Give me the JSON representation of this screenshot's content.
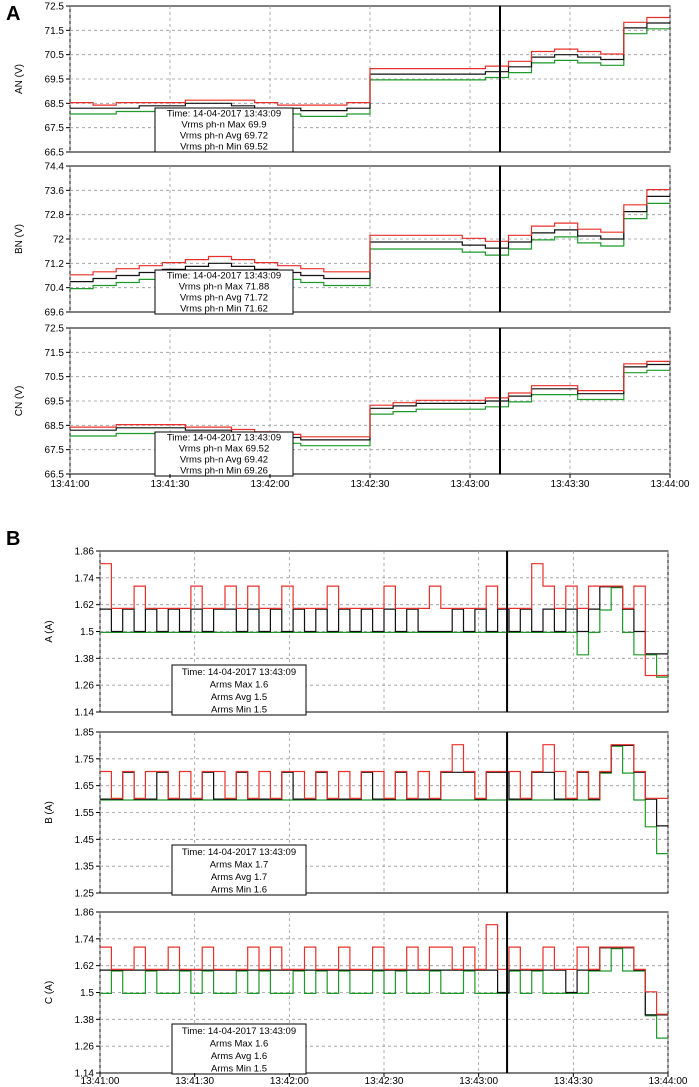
{
  "figure": {
    "panel_labels": [
      "A",
      "B"
    ]
  },
  "colors": {
    "max": "#e8302a",
    "avg": "#111111",
    "min": "#1f9a2a",
    "grid": "#9a9a9a",
    "cursor": "#000000"
  },
  "chart_data": [
    {
      "type": "line",
      "panel": "A",
      "ylabel": "AN (V)",
      "ylim": [
        66.5,
        72.5
      ],
      "yticks": [
        66.5,
        67.5,
        68.5,
        69.5,
        70.5,
        71.5,
        72.5
      ],
      "xlim": [
        "13:41:00",
        "13:44:00"
      ],
      "cursor_time": "13:43:09",
      "series": [
        {
          "name": "Max",
          "color_key": "max",
          "values": [
            68.5,
            68.4,
            68.5,
            68.5,
            68.5,
            68.6,
            68.6,
            68.6,
            68.5,
            68.4,
            68.4,
            68.4,
            68.5,
            69.9,
            69.9,
            69.9,
            69.9,
            69.9,
            70.0,
            70.2,
            70.6,
            70.7,
            70.6,
            70.5,
            71.8,
            72.0
          ]
        },
        {
          "name": "Avg",
          "color_key": "avg",
          "values": [
            68.3,
            68.3,
            68.3,
            68.4,
            68.4,
            68.5,
            68.5,
            68.4,
            68.3,
            68.3,
            68.2,
            68.2,
            68.3,
            69.7,
            69.7,
            69.7,
            69.7,
            69.7,
            69.8,
            70.0,
            70.4,
            70.5,
            70.4,
            70.3,
            71.6,
            71.8
          ]
        },
        {
          "name": "Min",
          "color_key": "min",
          "values": [
            68.1,
            68.1,
            68.2,
            68.2,
            68.3,
            68.3,
            68.3,
            68.2,
            68.1,
            68.1,
            68.0,
            68.0,
            68.1,
            69.5,
            69.5,
            69.5,
            69.5,
            69.5,
            69.6,
            69.8,
            70.2,
            70.3,
            70.2,
            70.1,
            71.4,
            71.6
          ]
        }
      ],
      "tooltip": [
        "Time: 14-04-2017 13:43:09",
        "Vrms ph-n Max 69.9",
        "Vrms ph-n Avg 69.72",
        "Vrms ph-n Min 69.52"
      ]
    },
    {
      "type": "line",
      "panel": "A",
      "ylabel": "BN (V)",
      "ylim": [
        69.6,
        74.4
      ],
      "yticks": [
        69.6,
        70.4,
        71.2,
        72,
        72.8,
        73.6,
        74.4
      ],
      "xlim": [
        "13:41:00",
        "13:44:00"
      ],
      "cursor_time": "13:43:09",
      "series": [
        {
          "name": "Max",
          "color_key": "max",
          "values": [
            70.8,
            70.9,
            71.0,
            71.1,
            71.2,
            71.3,
            71.4,
            71.3,
            71.2,
            71.1,
            71.0,
            70.9,
            70.9,
            72.1,
            72.1,
            72.1,
            72.1,
            72.0,
            71.9,
            72.1,
            72.4,
            72.5,
            72.3,
            72.2,
            73.1,
            73.6
          ]
        },
        {
          "name": "Avg",
          "color_key": "avg",
          "values": [
            70.6,
            70.7,
            70.8,
            70.9,
            71.0,
            71.1,
            71.2,
            71.1,
            71.0,
            70.9,
            70.8,
            70.7,
            70.7,
            71.9,
            71.9,
            71.9,
            71.9,
            71.8,
            71.7,
            71.9,
            72.2,
            72.3,
            72.1,
            72.0,
            72.9,
            73.4
          ]
        },
        {
          "name": "Min",
          "color_key": "min",
          "values": [
            70.4,
            70.5,
            70.6,
            70.7,
            70.8,
            70.9,
            71.0,
            70.9,
            70.8,
            70.7,
            70.6,
            70.5,
            70.5,
            71.7,
            71.7,
            71.7,
            71.7,
            71.6,
            71.5,
            71.7,
            72.0,
            72.1,
            71.9,
            71.8,
            72.7,
            73.2
          ]
        }
      ],
      "tooltip": [
        "Time: 14-04-2017 13:43:09",
        "Vrms ph-n Max 71.88",
        "Vrms ph-n Avg 71.72",
        "Vrms ph-n Min 71.62"
      ]
    },
    {
      "type": "line",
      "panel": "A",
      "ylabel": "CN (V)",
      "ylim": [
        66.5,
        72.5
      ],
      "yticks": [
        66.5,
        67.5,
        68.5,
        69.5,
        70.5,
        71.5,
        72.5
      ],
      "xlim": [
        "13:41:00",
        "13:44:00"
      ],
      "cursor_time": "13:43:09",
      "series": [
        {
          "name": "Max",
          "color_key": "max",
          "values": [
            68.4,
            68.4,
            68.5,
            68.5,
            68.5,
            68.4,
            68.4,
            68.3,
            68.2,
            68.1,
            68.0,
            68.0,
            68.0,
            69.3,
            69.4,
            69.5,
            69.5,
            69.5,
            69.6,
            69.8,
            70.1,
            70.1,
            69.9,
            69.9,
            71.0,
            71.1
          ]
        },
        {
          "name": "Avg",
          "color_key": "avg",
          "values": [
            68.3,
            68.3,
            68.4,
            68.4,
            68.4,
            68.3,
            68.3,
            68.2,
            68.1,
            68.0,
            67.9,
            67.9,
            67.9,
            69.2,
            69.3,
            69.4,
            69.4,
            69.4,
            69.5,
            69.7,
            70.0,
            70.0,
            69.8,
            69.8,
            70.9,
            71.0
          ]
        },
        {
          "name": "Min",
          "color_key": "min",
          "values": [
            68.1,
            68.1,
            68.2,
            68.2,
            68.2,
            68.1,
            68.1,
            68.0,
            67.9,
            67.8,
            67.7,
            67.7,
            67.7,
            69.0,
            69.1,
            69.2,
            69.2,
            69.2,
            69.3,
            69.5,
            69.8,
            69.8,
            69.6,
            69.6,
            70.7,
            70.8
          ]
        }
      ],
      "tooltip": [
        "Time: 14-04-2017 13:43:09",
        "Vrms ph-n Max 69.52",
        "Vrms ph-n Avg 69.42",
        "Vrms ph-n Min 69.26"
      ]
    },
    {
      "type": "line",
      "panel": "B",
      "ylabel": "A (A)",
      "ylim": [
        1.14,
        1.86
      ],
      "yticks": [
        1.14,
        1.26,
        1.38,
        1.5,
        1.62,
        1.74,
        1.86
      ],
      "xlim": [
        "13:41:00",
        "13:44:00"
      ],
      "cursor_time": "13:43:09",
      "series": [
        {
          "name": "Max",
          "color_key": "max",
          "values": [
            1.8,
            1.6,
            1.6,
            1.7,
            1.6,
            1.6,
            1.6,
            1.6,
            1.7,
            1.6,
            1.6,
            1.7,
            1.6,
            1.7,
            1.6,
            1.6,
            1.7,
            1.6,
            1.6,
            1.6,
            1.7,
            1.6,
            1.6,
            1.6,
            1.6,
            1.7,
            1.6,
            1.6,
            1.6,
            1.7,
            1.6,
            1.6,
            1.6,
            1.6,
            1.7,
            1.6,
            1.6,
            1.6,
            1.8,
            1.7,
            1.6,
            1.7,
            1.6,
            1.7,
            1.7,
            1.7,
            1.6,
            1.7,
            1.3,
            1.3
          ]
        },
        {
          "name": "Avg",
          "color_key": "avg",
          "values": [
            1.6,
            1.5,
            1.6,
            1.5,
            1.6,
            1.5,
            1.6,
            1.5,
            1.6,
            1.5,
            1.6,
            1.6,
            1.5,
            1.6,
            1.5,
            1.6,
            1.5,
            1.6,
            1.5,
            1.6,
            1.5,
            1.6,
            1.5,
            1.6,
            1.5,
            1.6,
            1.5,
            1.6,
            1.5,
            1.5,
            1.5,
            1.6,
            1.5,
            1.6,
            1.5,
            1.6,
            1.5,
            1.6,
            1.5,
            1.6,
            1.5,
            1.6,
            1.5,
            1.6,
            1.7,
            1.7,
            1.6,
            1.5,
            1.4,
            1.4
          ]
        },
        {
          "name": "Min",
          "color_key": "min",
          "values": [
            1.5,
            1.5,
            1.5,
            1.5,
            1.5,
            1.5,
            1.5,
            1.5,
            1.5,
            1.5,
            1.5,
            1.5,
            1.5,
            1.5,
            1.5,
            1.5,
            1.5,
            1.5,
            1.5,
            1.5,
            1.5,
            1.5,
            1.5,
            1.5,
            1.5,
            1.5,
            1.5,
            1.5,
            1.5,
            1.5,
            1.5,
            1.5,
            1.5,
            1.5,
            1.5,
            1.5,
            1.5,
            1.5,
            1.5,
            1.5,
            1.5,
            1.5,
            1.4,
            1.5,
            1.6,
            1.7,
            1.5,
            1.4,
            1.4,
            1.3
          ]
        }
      ],
      "tooltip": [
        "Time: 14-04-2017 13:43:09",
        "Arms Max 1.6",
        "Arms Avg 1.5",
        "Arms Min 1.5"
      ]
    },
    {
      "type": "line",
      "panel": "B",
      "ylabel": "B (A)",
      "ylim": [
        1.25,
        1.85
      ],
      "yticks": [
        1.25,
        1.35,
        1.45,
        1.55,
        1.65,
        1.75,
        1.85
      ],
      "xlim": [
        "13:41:00",
        "13:44:00"
      ],
      "cursor_time": "13:43:09",
      "series": [
        {
          "name": "Max",
          "color_key": "max",
          "values": [
            1.7,
            1.6,
            1.7,
            1.6,
            1.7,
            1.7,
            1.6,
            1.7,
            1.6,
            1.7,
            1.7,
            1.6,
            1.7,
            1.6,
            1.7,
            1.6,
            1.7,
            1.7,
            1.6,
            1.7,
            1.6,
            1.7,
            1.6,
            1.7,
            1.7,
            1.6,
            1.7,
            1.6,
            1.7,
            1.6,
            1.7,
            1.8,
            1.7,
            1.6,
            1.7,
            1.7,
            1.7,
            1.6,
            1.7,
            1.8,
            1.7,
            1.6,
            1.7,
            1.6,
            1.7,
            1.8,
            1.8,
            1.7,
            1.6,
            1.6
          ]
        },
        {
          "name": "Avg",
          "color_key": "avg",
          "values": [
            1.6,
            1.6,
            1.7,
            1.6,
            1.6,
            1.7,
            1.6,
            1.6,
            1.6,
            1.7,
            1.6,
            1.6,
            1.7,
            1.6,
            1.6,
            1.6,
            1.7,
            1.6,
            1.6,
            1.7,
            1.6,
            1.6,
            1.6,
            1.7,
            1.6,
            1.6,
            1.7,
            1.6,
            1.6,
            1.6,
            1.7,
            1.7,
            1.7,
            1.6,
            1.7,
            1.7,
            1.6,
            1.6,
            1.7,
            1.7,
            1.6,
            1.6,
            1.7,
            1.6,
            1.7,
            1.8,
            1.8,
            1.7,
            1.6,
            1.5
          ]
        },
        {
          "name": "Min",
          "color_key": "min",
          "values": [
            1.6,
            1.6,
            1.6,
            1.6,
            1.6,
            1.6,
            1.6,
            1.6,
            1.6,
            1.6,
            1.6,
            1.6,
            1.6,
            1.6,
            1.6,
            1.6,
            1.6,
            1.6,
            1.6,
            1.6,
            1.6,
            1.6,
            1.6,
            1.6,
            1.6,
            1.6,
            1.6,
            1.6,
            1.6,
            1.6,
            1.6,
            1.6,
            1.6,
            1.6,
            1.6,
            1.6,
            1.6,
            1.6,
            1.6,
            1.6,
            1.6,
            1.6,
            1.6,
            1.6,
            1.7,
            1.8,
            1.7,
            1.6,
            1.5,
            1.4
          ]
        }
      ],
      "tooltip": [
        "Time: 14-04-2017 13:43:09",
        "Arms Max 1.7",
        "Arms Avg 1.7",
        "Arms Min 1.6"
      ]
    },
    {
      "type": "line",
      "panel": "B",
      "ylabel": "C (A)",
      "ylim": [
        1.14,
        1.86
      ],
      "yticks": [
        1.14,
        1.26,
        1.38,
        1.5,
        1.62,
        1.74,
        1.86
      ],
      "xlim": [
        "13:41:00",
        "13:44:00"
      ],
      "cursor_time": "13:43:09",
      "series": [
        {
          "name": "Max",
          "color_key": "max",
          "values": [
            1.7,
            1.6,
            1.6,
            1.7,
            1.6,
            1.6,
            1.7,
            1.6,
            1.6,
            1.7,
            1.6,
            1.6,
            1.6,
            1.7,
            1.6,
            1.7,
            1.6,
            1.6,
            1.7,
            1.6,
            1.6,
            1.7,
            1.6,
            1.6,
            1.7,
            1.6,
            1.6,
            1.7,
            1.6,
            1.7,
            1.7,
            1.6,
            1.7,
            1.6,
            1.8,
            1.6,
            1.7,
            1.6,
            1.6,
            1.7,
            1.6,
            1.6,
            1.7,
            1.6,
            1.7,
            1.7,
            1.7,
            1.6,
            1.5,
            1.4
          ]
        },
        {
          "name": "Avg",
          "color_key": "avg",
          "values": [
            1.6,
            1.6,
            1.6,
            1.6,
            1.6,
            1.6,
            1.6,
            1.6,
            1.6,
            1.6,
            1.6,
            1.6,
            1.6,
            1.6,
            1.6,
            1.6,
            1.6,
            1.6,
            1.6,
            1.6,
            1.6,
            1.6,
            1.6,
            1.6,
            1.6,
            1.6,
            1.6,
            1.6,
            1.6,
            1.6,
            1.6,
            1.6,
            1.6,
            1.6,
            1.6,
            1.5,
            1.6,
            1.6,
            1.6,
            1.6,
            1.6,
            1.5,
            1.6,
            1.6,
            1.7,
            1.7,
            1.7,
            1.6,
            1.4,
            1.4
          ]
        },
        {
          "name": "Min",
          "color_key": "min",
          "values": [
            1.5,
            1.6,
            1.5,
            1.5,
            1.6,
            1.5,
            1.5,
            1.6,
            1.5,
            1.6,
            1.5,
            1.5,
            1.6,
            1.5,
            1.6,
            1.5,
            1.5,
            1.6,
            1.5,
            1.6,
            1.5,
            1.6,
            1.5,
            1.5,
            1.6,
            1.5,
            1.6,
            1.5,
            1.5,
            1.6,
            1.5,
            1.5,
            1.6,
            1.5,
            1.5,
            1.5,
            1.6,
            1.5,
            1.6,
            1.5,
            1.5,
            1.5,
            1.5,
            1.6,
            1.6,
            1.7,
            1.6,
            1.6,
            1.4,
            1.3
          ]
        }
      ],
      "tooltip": [
        "Time: 14-04-2017 13:43:09",
        "Arms Max 1.6",
        "Arms Avg 1.6",
        "Arms Min 1.5"
      ]
    }
  ],
  "x_axis": {
    "ticks": [
      "13:41:00",
      "13:41:30",
      "13:42:00",
      "13:42:30",
      "13:43:00",
      "13:43:30",
      "13:44:00"
    ]
  }
}
